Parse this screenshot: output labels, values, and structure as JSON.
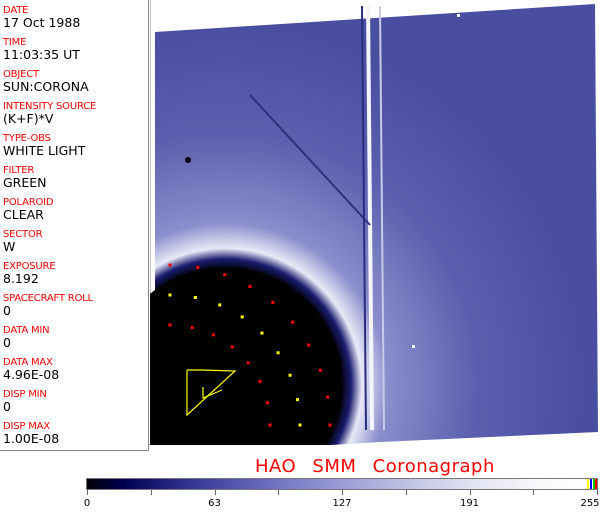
{
  "info_panel": [
    {
      "label": "DATE",
      "value": "17 Oct 1988"
    },
    {
      "label": "TIME",
      "value": "11:03:35 UT"
    },
    {
      "label": "OBJECT",
      "value": "SUN:CORONA"
    },
    {
      "label": "INTENSITY SOURCE",
      "value": "(K+F)*V"
    },
    {
      "label": "TYPE-OBS",
      "value": "WHITE LIGHT"
    },
    {
      "label": "FILTER",
      "value": "GREEN"
    },
    {
      "label": "POLAROID",
      "value": "CLEAR"
    },
    {
      "label": "SECTOR",
      "value": "W"
    },
    {
      "label": "EXPOSURE",
      "value": "8.192"
    },
    {
      "label": "SPACECRAFT ROLL",
      "value": "0"
    },
    {
      "label": "DATA MIN",
      "value": "0"
    },
    {
      "label": "DATA MAX",
      "value": "4.96E-08"
    },
    {
      "label": "DISP MIN",
      "value": "0"
    },
    {
      "label": "DISP MAX",
      "value": "1.00E-08"
    }
  ],
  "title": "HAO SMM Coronagraph",
  "colorbar": {
    "ticks": [
      "0",
      "63",
      "127",
      "191",
      "255"
    ],
    "range": [
      0,
      255
    ],
    "colormap": "black-blue-white"
  },
  "colors": {
    "label": "#ff0000",
    "marker_red": "#ff0000",
    "marker_yellow": "#ffff00"
  }
}
